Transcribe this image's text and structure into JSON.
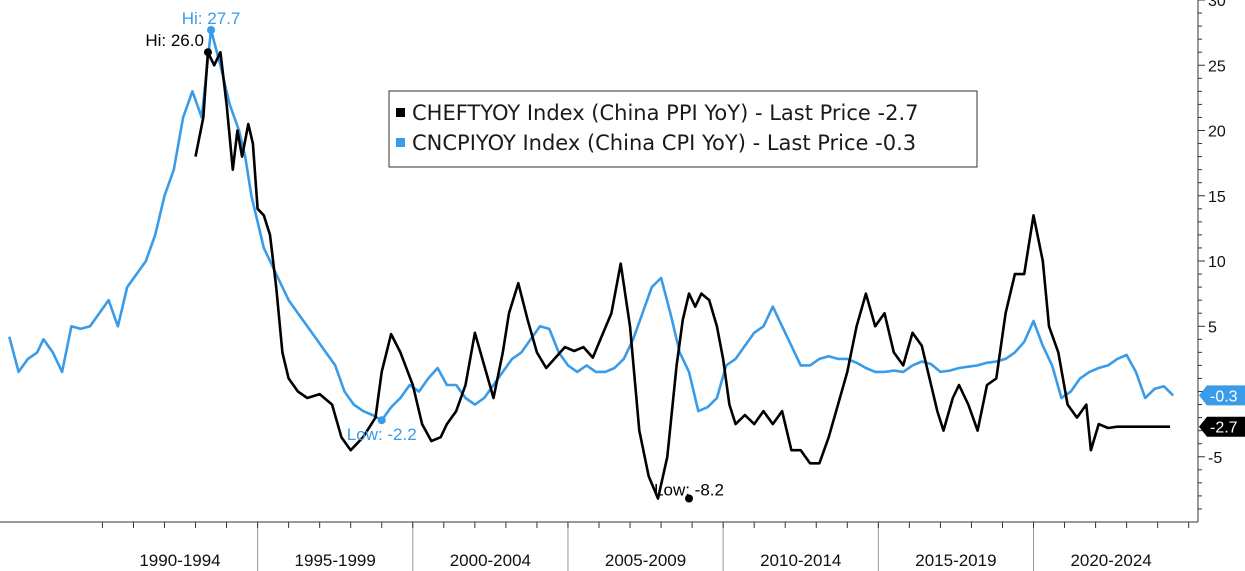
{
  "chart_data": {
    "type": "line",
    "ylim": [
      -10,
      30
    ],
    "y_ticks": [
      "30",
      "25",
      "20",
      "15",
      "10",
      "5",
      "",
      "-5"
    ],
    "y_tick_values": [
      30,
      25,
      20,
      15,
      10,
      5,
      0,
      -5
    ],
    "grid": false,
    "legend_position": "top-center",
    "periods": [
      "1990-1994",
      "1995-1999",
      "2000-2004",
      "2005-2009",
      "2010-2014",
      "2015-2019",
      "2020-2024"
    ],
    "series": [
      {
        "name": "CHEFTYOY Index (China PPI YoY) - Last Price -2.7",
        "color": "#000000",
        "last_value_label": "-2.7",
        "x": [
          1993.0,
          1993.25,
          1993.4,
          1993.6,
          1993.8,
          1994.0,
          1994.2,
          1994.35,
          1994.5,
          1994.7,
          1994.85,
          1995.0,
          1995.2,
          1995.4,
          1995.6,
          1995.8,
          1996.0,
          1996.3,
          1996.6,
          1997.0,
          1997.4,
          1997.7,
          1998.0,
          1998.4,
          1998.8,
          1999.0,
          1999.3,
          1999.6,
          2000.0,
          2000.3,
          2000.6,
          2000.9,
          2001.1,
          2001.4,
          2001.7,
          2002.0,
          2002.3,
          2002.6,
          2002.9,
          2003.1,
          2003.4,
          2003.7,
          2004.0,
          2004.3,
          2004.6,
          2004.9,
          2005.2,
          2005.5,
          2005.8,
          2006.1,
          2006.4,
          2006.7,
          2007.0,
          2007.3,
          2007.6,
          2007.9,
          2008.2,
          2008.5,
          2008.7,
          2008.9,
          2009.1,
          2009.3,
          2009.55,
          2009.8,
          2010.0,
          2010.2,
          2010.4,
          2010.7,
          2011.0,
          2011.3,
          2011.6,
          2011.9,
          2012.2,
          2012.5,
          2012.8,
          2013.1,
          2013.4,
          2013.7,
          2014.0,
          2014.3,
          2014.6,
          2014.9,
          2015.2,
          2015.5,
          2015.8,
          2016.1,
          2016.4,
          2016.7,
          2016.9,
          2017.1,
          2017.4,
          2017.6,
          2017.9,
          2018.2,
          2018.5,
          2018.8,
          2019.1,
          2019.4,
          2019.7,
          2020.0,
          2020.3,
          2020.5,
          2020.8,
          2021.1,
          2021.4,
          2021.7,
          2021.85,
          2022.1,
          2022.4,
          2022.7,
          2022.9,
          2023.2,
          2023.5,
          2023.8,
          2024.0,
          2024.2,
          2024.4
        ],
        "y": [
          18,
          21,
          26.0,
          25,
          26,
          22,
          17,
          20,
          18,
          20.5,
          19,
          14,
          13.5,
          12,
          8,
          3,
          1,
          0,
          -0.5,
          -0.2,
          -1,
          -3.5,
          -4.5,
          -3.5,
          -2,
          1.5,
          4.4,
          3,
          0.5,
          -2.5,
          -3.8,
          -3.5,
          -2.5,
          -1.5,
          0.5,
          4.5,
          2,
          -0.5,
          3,
          6,
          8.3,
          5.5,
          3,
          1.8,
          2.6,
          3.4,
          3.1,
          3.4,
          2.6,
          4.3,
          6,
          9.8,
          5,
          -3,
          -6.5,
          -8.2,
          -5,
          2,
          5.5,
          7.5,
          6.5,
          7.5,
          7,
          5,
          2.5,
          -1,
          -2.5,
          -1.8,
          -2.5,
          -1.5,
          -2.5,
          -1.5,
          -4.5,
          -4.5,
          -5.5,
          -5.5,
          -3.5,
          -1,
          1.5,
          5,
          7.5,
          5,
          6,
          3,
          2,
          4.5,
          3.5,
          0.5,
          -1.5,
          -3,
          -0.5,
          0.5,
          -1,
          -3,
          0.5,
          1,
          6,
          9,
          9,
          13.5,
          10,
          5,
          3,
          -1,
          -2,
          -1,
          -4.5,
          -2.5,
          -2.8,
          -2.7,
          -2.7,
          -2.7,
          -2.7,
          -2.7,
          -2.7,
          -2.7,
          -2.7
        ]
      },
      {
        "name": "CNCPIYOY Index (China CPI YoY) - Last Price -0.3",
        "color": "#3a9be8",
        "last_value_label": "-0.3",
        "x": [
          1987.0,
          1987.3,
          1987.6,
          1987.9,
          1988.1,
          1988.4,
          1988.7,
          1989.0,
          1989.3,
          1989.6,
          1989.9,
          1990.2,
          1990.5,
          1990.8,
          1991.1,
          1991.4,
          1991.7,
          1992.0,
          1992.3,
          1992.6,
          1992.9,
          1993.2,
          1993.5,
          1993.8,
          1994.1,
          1994.4,
          1994.6,
          1994.8,
          1995.0,
          1995.2,
          1995.4,
          1995.6,
          1995.8,
          1996.0,
          1996.3,
          1996.6,
          1996.9,
          1997.2,
          1997.5,
          1997.8,
          1998.1,
          1998.4,
          1998.7,
          1999.0,
          1999.3,
          1999.6,
          1999.9,
          2000.2,
          2000.5,
          2000.8,
          2001.1,
          2001.4,
          2001.7,
          2002.0,
          2002.3,
          2002.6,
          2002.9,
          2003.2,
          2003.5,
          2003.8,
          2004.1,
          2004.4,
          2004.7,
          2005.0,
          2005.3,
          2005.6,
          2005.9,
          2006.2,
          2006.5,
          2006.8,
          2007.1,
          2007.4,
          2007.7,
          2008.0,
          2008.3,
          2008.6,
          2008.9,
          2009.2,
          2009.5,
          2009.8,
          2010.1,
          2010.4,
          2010.7,
          2011.0,
          2011.3,
          2011.6,
          2011.9,
          2012.2,
          2012.5,
          2012.8,
          2013.1,
          2013.4,
          2013.7,
          2014.0,
          2014.3,
          2014.6,
          2014.9,
          2015.2,
          2015.5,
          2015.8,
          2016.1,
          2016.4,
          2016.7,
          2017.0,
          2017.3,
          2017.6,
          2017.9,
          2018.2,
          2018.5,
          2018.8,
          2019.1,
          2019.4,
          2019.7,
          2020.0,
          2020.3,
          2020.6,
          2020.9,
          2021.2,
          2021.5,
          2021.8,
          2022.1,
          2022.4,
          2022.7,
          2023.0,
          2023.3,
          2023.6,
          2023.9,
          2024.2,
          2024.5
        ],
        "y": [
          4.2,
          1.5,
          2.5,
          3,
          4,
          3,
          1.5,
          5,
          4.8,
          5,
          6,
          7,
          5,
          8,
          9,
          10,
          12,
          15,
          17,
          21,
          23,
          21,
          27.7,
          25,
          22,
          20,
          18,
          15,
          13,
          11,
          10,
          9,
          8,
          7,
          6,
          5,
          4,
          3,
          2,
          0,
          -1,
          -1.5,
          -1.8,
          -2.2,
          -1.2,
          -0.5,
          0.5,
          0,
          1,
          1.8,
          0.5,
          0.5,
          -0.5,
          -1,
          -0.5,
          0.5,
          1.5,
          2.5,
          3,
          4,
          5,
          4.8,
          3,
          2,
          1.5,
          2,
          1.5,
          1.5,
          1.8,
          2.5,
          4,
          6,
          8,
          8.7,
          6,
          3,
          1.5,
          -1.5,
          -1.2,
          -0.5,
          2,
          2.5,
          3.5,
          4.5,
          5,
          6.5,
          5,
          3.5,
          2,
          2,
          2.5,
          2.7,
          2.5,
          2.5,
          2.2,
          1.8,
          1.5,
          1.5,
          1.6,
          1.5,
          2,
          2.3,
          2.1,
          1.5,
          1.6,
          1.8,
          1.9,
          2,
          2.2,
          2.3,
          2.5,
          3,
          3.8,
          5.4,
          3.5,
          2,
          -0.5,
          0,
          1,
          1.5,
          1.8,
          2,
          2.5,
          2.8,
          1.5,
          -0.5,
          0.2,
          0.4,
          -0.3
        ]
      }
    ],
    "annotations": [
      {
        "text": "Hi: 26.0",
        "series": 0,
        "x": 1993.4,
        "y": 26.0,
        "color": "#000000"
      },
      {
        "text": "Hi: 27.7",
        "series": 1,
        "x": 1993.5,
        "y": 27.7,
        "color": "#3a9be8"
      },
      {
        "text": "Low: -2.2",
        "series": 1,
        "x": 1999.0,
        "y": -2.2,
        "color": "#3a9be8"
      },
      {
        "text": "Low: -8.2",
        "series": 0,
        "x": 2008.9,
        "y": -8.2,
        "color": "#000000"
      }
    ]
  },
  "legend": {
    "entries": [
      {
        "label": "CHEFTYOY Index (China PPI YoY) - Last Price -2.7",
        "color": "#000000"
      },
      {
        "label": "CNCPIYOY Index (China CPI YoY) - Last Price -0.3",
        "color": "#3a9be8"
      }
    ]
  }
}
